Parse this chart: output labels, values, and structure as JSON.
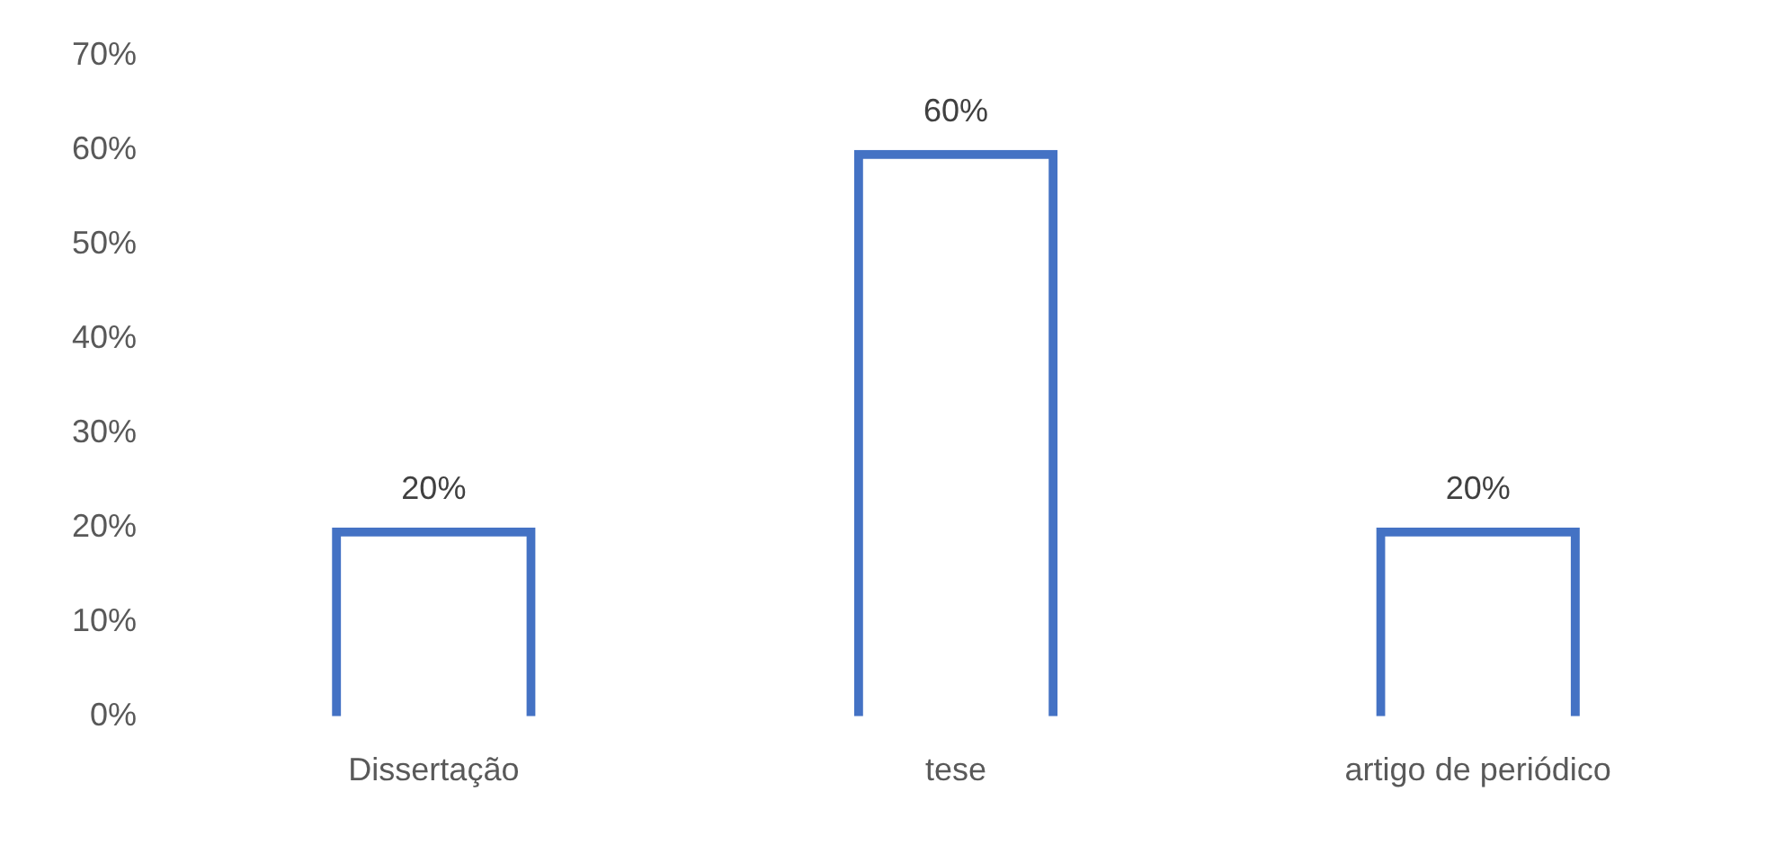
{
  "chart_data": {
    "type": "bar",
    "categories": [
      "Dissertação",
      "tese",
      "artigo de periódico"
    ],
    "values": [
      20,
      60,
      20
    ],
    "color": "#4472c4",
    "value_labels": [
      "20%",
      "60%",
      "20%"
    ],
    "ylim": [
      0,
      70
    ],
    "yticks": [
      {
        "value": 0,
        "label": "0%"
      },
      {
        "value": 10,
        "label": "10%"
      },
      {
        "value": 20,
        "label": "20%"
      },
      {
        "value": 30,
        "label": "30%"
      },
      {
        "value": 40,
        "label": "40%"
      },
      {
        "value": 50,
        "label": "50%"
      },
      {
        "value": 60,
        "label": "60%"
      },
      {
        "value": 70,
        "label": "70%"
      }
    ],
    "grid": false,
    "legend": false
  }
}
